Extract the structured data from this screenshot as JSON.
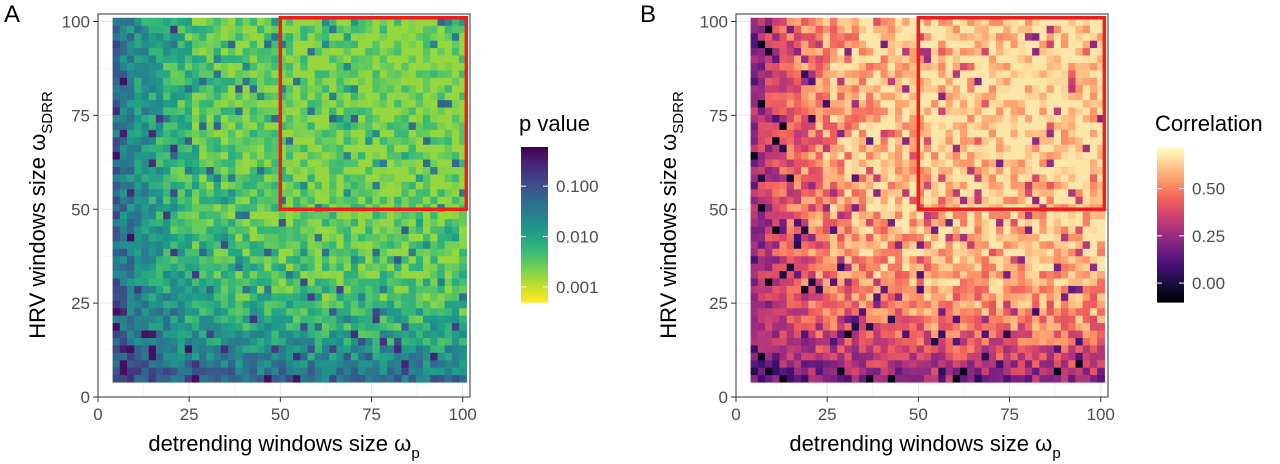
{
  "figure": {
    "panels": [
      {
        "letter": "A",
        "xlabel_main": "detrending windows size ",
        "xlabel_symbol": "ω",
        "xlabel_sub": "p",
        "ylabel_main": "HRV windows size ",
        "ylabel_symbol": "ω",
        "ylabel_sub": "SDRR",
        "legend_title": "p value"
      },
      {
        "letter": "B",
        "xlabel_main": "detrending windows size ",
        "xlabel_symbol": "ω",
        "xlabel_sub": "p",
        "ylabel_main": "HRV windows size ",
        "ylabel_symbol": "ω",
        "ylabel_sub": "SDRR",
        "legend_title": "Correlation"
      }
    ]
  },
  "colors": {
    "highlight": "#ee1c1c",
    "grid_major": "#e6e6e6",
    "grid_minor": "#f3f3f3",
    "panel_border": "#333333",
    "viridis": [
      "#440154",
      "#482878",
      "#3e4989",
      "#31688e",
      "#26828e",
      "#1f9e89",
      "#35b779",
      "#6ece58",
      "#b5de2b",
      "#fde725"
    ],
    "magma": [
      "#000004",
      "#180f3d",
      "#440f76",
      "#721f81",
      "#9e2f7f",
      "#cd4071",
      "#f1605d",
      "#fd9668",
      "#feca8d",
      "#fcfdbf"
    ]
  },
  "chart_data": [
    {
      "type": "heatmap",
      "panel": "A",
      "x_range": [
        4,
        101
      ],
      "y_range": [
        4,
        101
      ],
      "cell_step": 2,
      "xlim": [
        0,
        102
      ],
      "ylim": [
        0,
        102
      ],
      "xticks": [
        0,
        25,
        50,
        75,
        100
      ],
      "yticks": [
        0,
        25,
        50,
        75,
        100
      ],
      "color_scale": "viridis",
      "log_scale": true,
      "color_reversed": true,
      "value_range": [
        0.0005,
        0.6
      ],
      "legend_ticks": [
        0.1,
        0.01,
        0.001
      ],
      "legend_tick_labels": [
        "0.100",
        "0.010",
        "0.001"
      ],
      "highlight_box": {
        "x": [
          50,
          101
        ],
        "y": [
          50,
          101
        ]
      }
    },
    {
      "type": "heatmap",
      "panel": "B",
      "x_range": [
        4,
        101
      ],
      "y_range": [
        4,
        101
      ],
      "cell_step": 2,
      "xlim": [
        0,
        102
      ],
      "ylim": [
        0,
        102
      ],
      "xticks": [
        0,
        25,
        50,
        75,
        100
      ],
      "yticks": [
        0,
        25,
        50,
        75,
        100
      ],
      "color_scale": "magma",
      "log_scale": false,
      "color_reversed": false,
      "value_range": [
        -0.1,
        0.72
      ],
      "legend_ticks": [
        0.5,
        0.25,
        0.0
      ],
      "legend_tick_labels": [
        "0.50",
        "0.25",
        "0.00"
      ],
      "highlight_box": {
        "x": [
          50,
          101
        ],
        "y": [
          50,
          101
        ]
      }
    }
  ]
}
